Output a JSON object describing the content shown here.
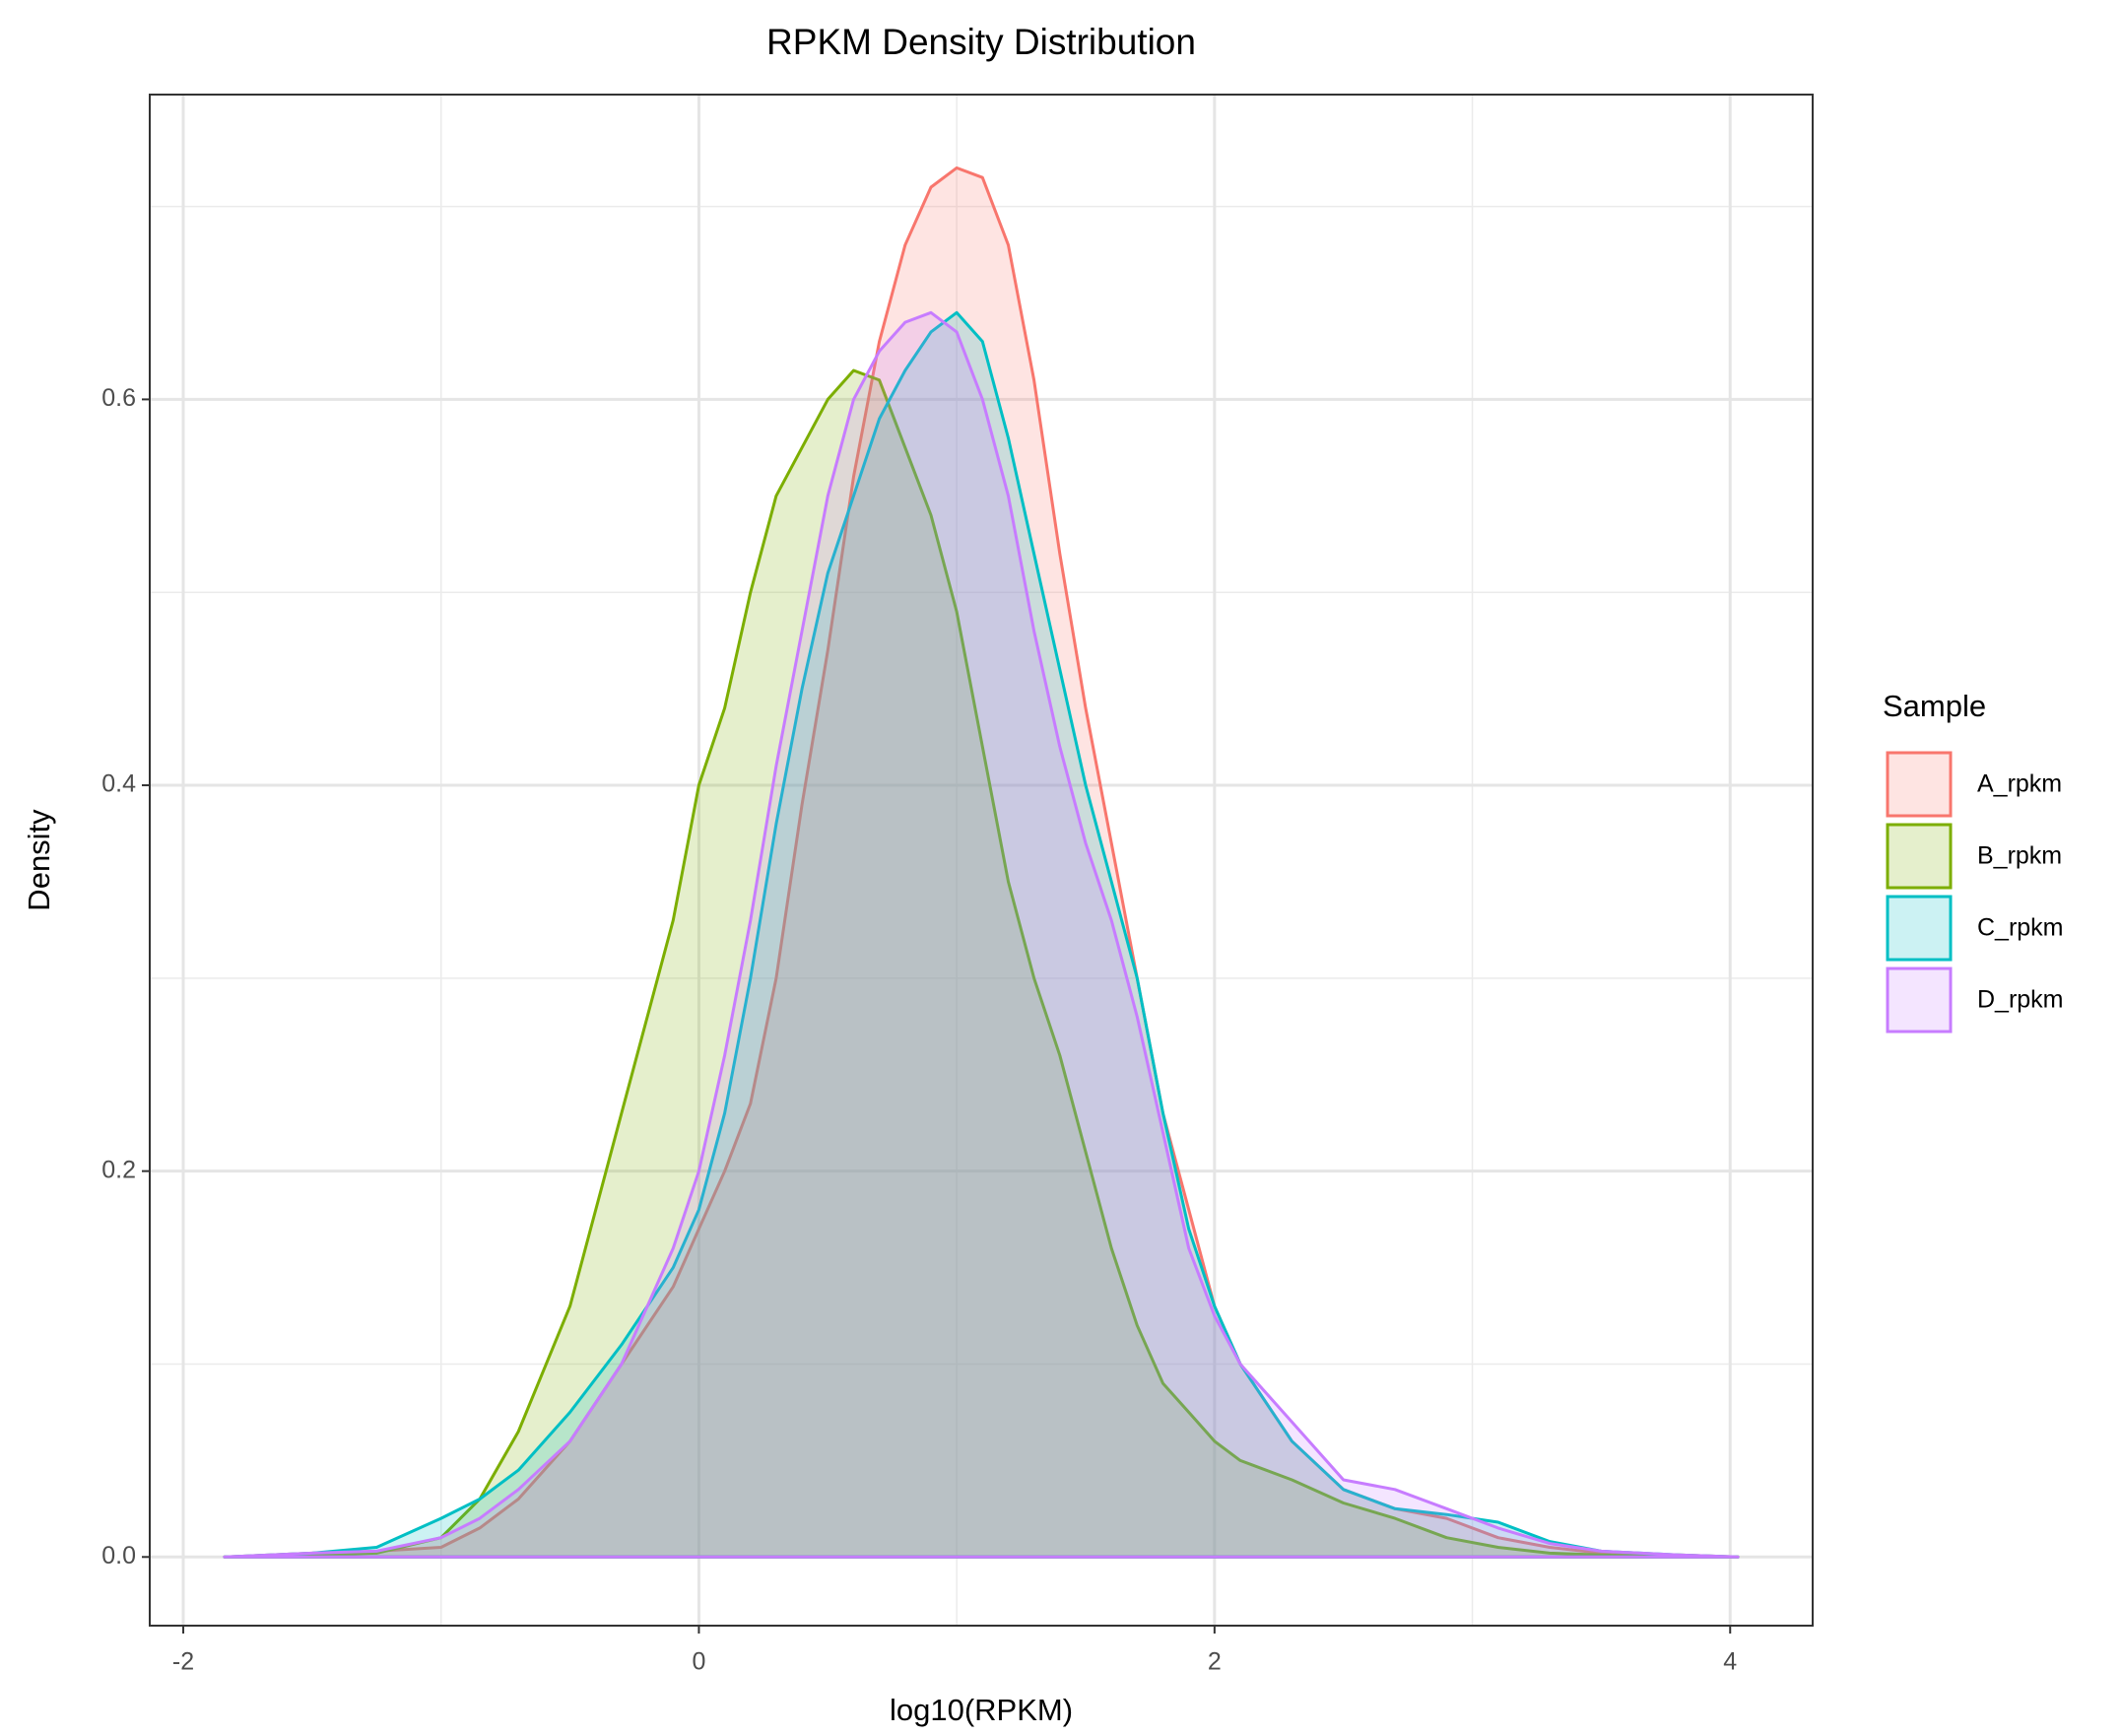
{
  "chart_data": {
    "type": "density",
    "title": "RPKM Density Distribution",
    "x_label": "log10(RPKM)",
    "y_label": "Density",
    "legend_title": "Sample",
    "legend_position": "right",
    "x": [
      -1.84,
      -1.5,
      -1.25,
      -1.0,
      -0.85,
      -0.7,
      -0.5,
      -0.3,
      -0.1,
      0,
      0.1,
      0.2,
      0.3,
      0.4,
      0.5,
      0.6,
      0.7,
      0.8,
      0.9,
      1.0,
      1.1,
      1.2,
      1.3,
      1.4,
      1.5,
      1.6,
      1.7,
      1.8,
      1.9,
      2.0,
      2.1,
      2.3,
      2.5,
      2.7,
      2.9,
      3.1,
      3.3,
      3.5,
      3.8,
      4.03
    ],
    "series": [
      {
        "name": "A_rpkm",
        "color": "#F8766D",
        "values": [
          0,
          0.002,
          0.003,
          0.005,
          0.015,
          0.03,
          0.06,
          0.1,
          0.14,
          0.17,
          0.2,
          0.235,
          0.3,
          0.39,
          0.47,
          0.56,
          0.63,
          0.68,
          0.71,
          0.72,
          0.715,
          0.68,
          0.61,
          0.52,
          0.44,
          0.37,
          0.3,
          0.23,
          0.18,
          0.13,
          0.1,
          0.06,
          0.035,
          0.025,
          0.02,
          0.01,
          0.005,
          0.002,
          0.001,
          0
        ]
      },
      {
        "name": "B_rpkm",
        "color": "#7CAE00",
        "values": [
          0,
          0.001,
          0.002,
          0.01,
          0.03,
          0.065,
          0.13,
          0.23,
          0.33,
          0.4,
          0.44,
          0.5,
          0.55,
          0.575,
          0.6,
          0.615,
          0.61,
          0.575,
          0.54,
          0.49,
          0.42,
          0.35,
          0.3,
          0.26,
          0.21,
          0.16,
          0.12,
          0.09,
          0.075,
          0.06,
          0.05,
          0.04,
          0.028,
          0.02,
          0.01,
          0.005,
          0.002,
          0.001,
          0,
          0
        ]
      },
      {
        "name": "C_rpkm",
        "color": "#00BFC4",
        "values": [
          0,
          0.002,
          0.005,
          0.02,
          0.03,
          0.045,
          0.075,
          0.11,
          0.15,
          0.18,
          0.23,
          0.3,
          0.38,
          0.45,
          0.51,
          0.55,
          0.59,
          0.615,
          0.635,
          0.645,
          0.63,
          0.58,
          0.52,
          0.46,
          0.4,
          0.35,
          0.3,
          0.23,
          0.17,
          0.13,
          0.1,
          0.06,
          0.035,
          0.025,
          0.022,
          0.018,
          0.008,
          0.003,
          0.001,
          0
        ]
      },
      {
        "name": "D_rpkm",
        "color": "#C77CFF",
        "values": [
          0,
          0.002,
          0.003,
          0.01,
          0.02,
          0.035,
          0.06,
          0.1,
          0.16,
          0.2,
          0.26,
          0.33,
          0.41,
          0.48,
          0.55,
          0.6,
          0.625,
          0.64,
          0.645,
          0.635,
          0.6,
          0.55,
          0.48,
          0.42,
          0.37,
          0.33,
          0.28,
          0.22,
          0.16,
          0.125,
          0.1,
          0.07,
          0.04,
          0.035,
          0.025,
          0.015,
          0.007,
          0.003,
          0.001,
          0
        ]
      }
    ],
    "fill_opacity": 0.2,
    "xlim": [
      -2.13,
      4.32
    ],
    "ylim": [
      -0.0356,
      0.758
    ],
    "xticks": [
      -2,
      0,
      2,
      4
    ],
    "yticks": [
      {
        "value": 0,
        "label": "0.0"
      },
      0.2,
      0.4,
      0.6
    ],
    "x_minor_ticks": [
      -1,
      1,
      3
    ],
    "y_minor_ticks": [
      0.1,
      0.3,
      0.5,
      0.7
    ],
    "grid": true
  }
}
